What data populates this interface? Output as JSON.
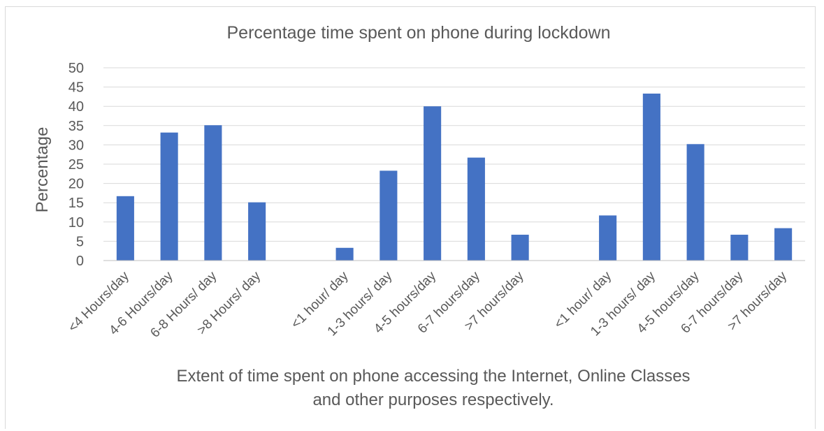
{
  "chart_data": {
    "type": "bar",
    "title": "Percentage time spent on phone during lockdown",
    "ylabel": "Percentage",
    "xlabel_lines": [
      "Extent of time spent on phone accessing the Internet, Online Classes",
      "and other purposes respectively."
    ],
    "ylim": [
      0,
      50
    ],
    "ytick_step": 5,
    "grid": true,
    "legend": "none",
    "bar_color": "#4472C4",
    "categories": [
      "<4 Hours/day",
      "4-6 Hours/day",
      "6-8 Hours/ day",
      ">8 Hours/ day",
      "",
      "<1 hour/ day",
      "1-3 hours/ day",
      "4-5 hours/day",
      "6-7 hours/day",
      ">7 hours/day",
      "",
      "<1 hour/ day",
      "1-3 hours/ day",
      "4-5 hours/day",
      "6-7 hours/day",
      ">7 hours/day"
    ],
    "values": [
      16.7,
      33.2,
      35.1,
      15.1,
      null,
      3.3,
      23.3,
      40.0,
      26.7,
      6.7,
      null,
      11.7,
      43.3,
      30.2,
      6.7,
      8.4
    ]
  }
}
